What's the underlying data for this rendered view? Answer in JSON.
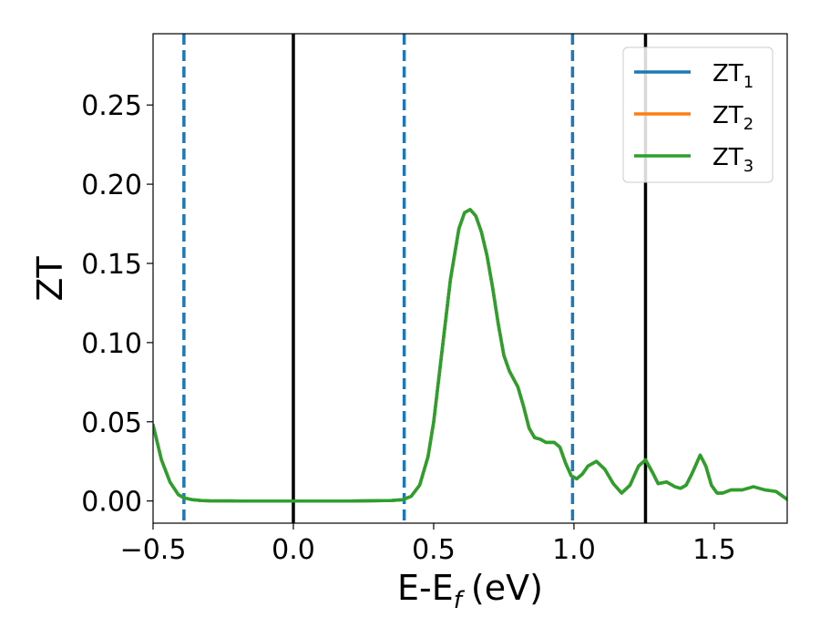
{
  "chart_data": {
    "type": "line",
    "title": "",
    "xlabel": "E-E",
    "xlabel_subscript": "f",
    "xlabel_unit": "(eV)",
    "ylabel": "ZT",
    "xlim": [
      -0.5,
      1.76
    ],
    "ylim": [
      -0.014,
      0.295
    ],
    "xticks": [
      -0.5,
      0.0,
      0.5,
      1.0,
      1.5
    ],
    "xtick_labels": [
      "−0.5",
      "0.0",
      "0.5",
      "1.0",
      "1.5"
    ],
    "yticks": [
      0.0,
      0.05,
      0.1,
      0.15,
      0.2,
      0.25
    ],
    "ytick_labels": [
      "0.00",
      "0.05",
      "0.10",
      "0.15",
      "0.20",
      "0.25"
    ],
    "grid": false,
    "legend_placement": "top-right",
    "vlines": [
      {
        "x": -0.39,
        "style": "dashed",
        "color": "#1f77b4"
      },
      {
        "x": 0.0,
        "style": "solid",
        "color": "#000000"
      },
      {
        "x": 0.395,
        "style": "dashed",
        "color": "#1f77b4"
      },
      {
        "x": 0.995,
        "style": "dashed",
        "color": "#1f77b4"
      },
      {
        "x": 1.255,
        "style": "solid",
        "color": "#000000"
      }
    ],
    "x": [
      -0.5,
      -0.47,
      -0.44,
      -0.41,
      -0.39,
      -0.36,
      -0.33,
      -0.3,
      -0.2,
      0.0,
      0.2,
      0.35,
      0.39,
      0.42,
      0.45,
      0.48,
      0.5,
      0.53,
      0.56,
      0.59,
      0.61,
      0.63,
      0.65,
      0.67,
      0.69,
      0.71,
      0.73,
      0.75,
      0.77,
      0.8,
      0.82,
      0.84,
      0.86,
      0.88,
      0.9,
      0.93,
      0.95,
      0.97,
      0.99,
      1.01,
      1.03,
      1.05,
      1.08,
      1.11,
      1.14,
      1.17,
      1.2,
      1.23,
      1.255,
      1.28,
      1.3,
      1.33,
      1.36,
      1.38,
      1.4,
      1.42,
      1.45,
      1.47,
      1.49,
      1.51,
      1.53,
      1.56,
      1.6,
      1.64,
      1.68,
      1.72,
      1.76
    ],
    "series": [
      {
        "name": "ZT",
        "subscript": "1",
        "color": "#1f77b4",
        "values": [
          0.048,
          0.026,
          0.012,
          0.004,
          0.002,
          0.0008,
          0.0003,
          0.0001,
          0.0,
          0.0,
          0.0,
          0.0003,
          0.0008,
          0.003,
          0.01,
          0.028,
          0.05,
          0.095,
          0.14,
          0.172,
          0.182,
          0.184,
          0.18,
          0.17,
          0.155,
          0.135,
          0.112,
          0.092,
          0.082,
          0.072,
          0.06,
          0.046,
          0.04,
          0.039,
          0.037,
          0.037,
          0.034,
          0.024,
          0.016,
          0.014,
          0.017,
          0.022,
          0.025,
          0.02,
          0.011,
          0.005,
          0.01,
          0.022,
          0.026,
          0.018,
          0.011,
          0.012,
          0.009,
          0.008,
          0.01,
          0.017,
          0.029,
          0.022,
          0.01,
          0.005,
          0.005,
          0.007,
          0.007,
          0.009,
          0.007,
          0.006,
          0.001
        ]
      },
      {
        "name": "ZT",
        "subscript": "2",
        "color": "#ff7f0e",
        "values": [
          0.048,
          0.026,
          0.012,
          0.004,
          0.002,
          0.0008,
          0.0003,
          0.0001,
          0.0,
          0.0,
          0.0,
          0.0003,
          0.0008,
          0.003,
          0.01,
          0.028,
          0.05,
          0.095,
          0.14,
          0.172,
          0.182,
          0.184,
          0.18,
          0.17,
          0.155,
          0.135,
          0.112,
          0.092,
          0.082,
          0.072,
          0.06,
          0.046,
          0.04,
          0.039,
          0.037,
          0.037,
          0.034,
          0.024,
          0.016,
          0.014,
          0.017,
          0.022,
          0.025,
          0.02,
          0.011,
          0.005,
          0.01,
          0.022,
          0.026,
          0.018,
          0.011,
          0.012,
          0.009,
          0.008,
          0.01,
          0.017,
          0.029,
          0.022,
          0.01,
          0.005,
          0.005,
          0.007,
          0.007,
          0.009,
          0.007,
          0.006,
          0.001
        ]
      },
      {
        "name": "ZT",
        "subscript": "3",
        "color": "#2ca02c",
        "values": [
          0.048,
          0.026,
          0.012,
          0.004,
          0.002,
          0.0008,
          0.0003,
          0.0001,
          0.0,
          0.0,
          0.0,
          0.0003,
          0.0008,
          0.003,
          0.01,
          0.028,
          0.05,
          0.095,
          0.14,
          0.172,
          0.182,
          0.184,
          0.18,
          0.17,
          0.155,
          0.135,
          0.112,
          0.092,
          0.082,
          0.072,
          0.06,
          0.046,
          0.04,
          0.039,
          0.037,
          0.037,
          0.034,
          0.024,
          0.016,
          0.014,
          0.017,
          0.022,
          0.025,
          0.02,
          0.011,
          0.005,
          0.01,
          0.022,
          0.026,
          0.018,
          0.011,
          0.012,
          0.009,
          0.008,
          0.01,
          0.017,
          0.029,
          0.022,
          0.01,
          0.005,
          0.005,
          0.007,
          0.007,
          0.009,
          0.007,
          0.006,
          0.001
        ]
      }
    ]
  }
}
